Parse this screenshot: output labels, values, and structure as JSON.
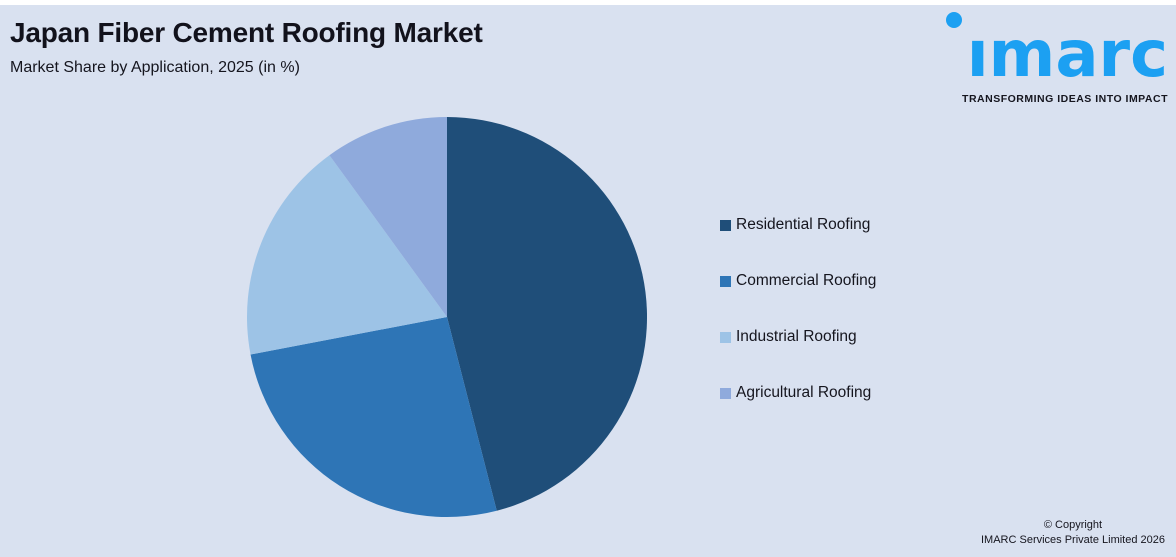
{
  "page": {
    "background": "#D9E1F0",
    "top_strip_color": "#FFFFFF"
  },
  "header": {
    "title": "Japan Fiber Cement Roofing Market",
    "subtitle": "Market Share by Application, 2025 (in %)"
  },
  "logo": {
    "wordmark": "imarc",
    "tagline": "TRANSFORMING IDEAS INTO IMPACT",
    "brand_color": "#1CA0F2"
  },
  "chart_data": {
    "type": "pie",
    "title": "Japan Fiber Cement Roofing Market",
    "subtitle": "Market Share by Application, 2025 (in %)",
    "unit": "%",
    "labels": [
      "Residential Roofing",
      "Commercial Roofing",
      "Industrial Roofing",
      "Agricultural Roofing"
    ],
    "values": [
      46,
      26,
      18,
      10
    ],
    "colors": [
      "#1F4E79",
      "#2E75B6",
      "#9DC3E6",
      "#8FAADC"
    ],
    "start_angle": "12-oclock",
    "direction": "clockwise",
    "legend_position": "right",
    "data_labels_shown": false
  },
  "footer": {
    "copyright_line1": "© Copyright",
    "copyright_line2": "IMARC Services Private Limited 2026"
  }
}
